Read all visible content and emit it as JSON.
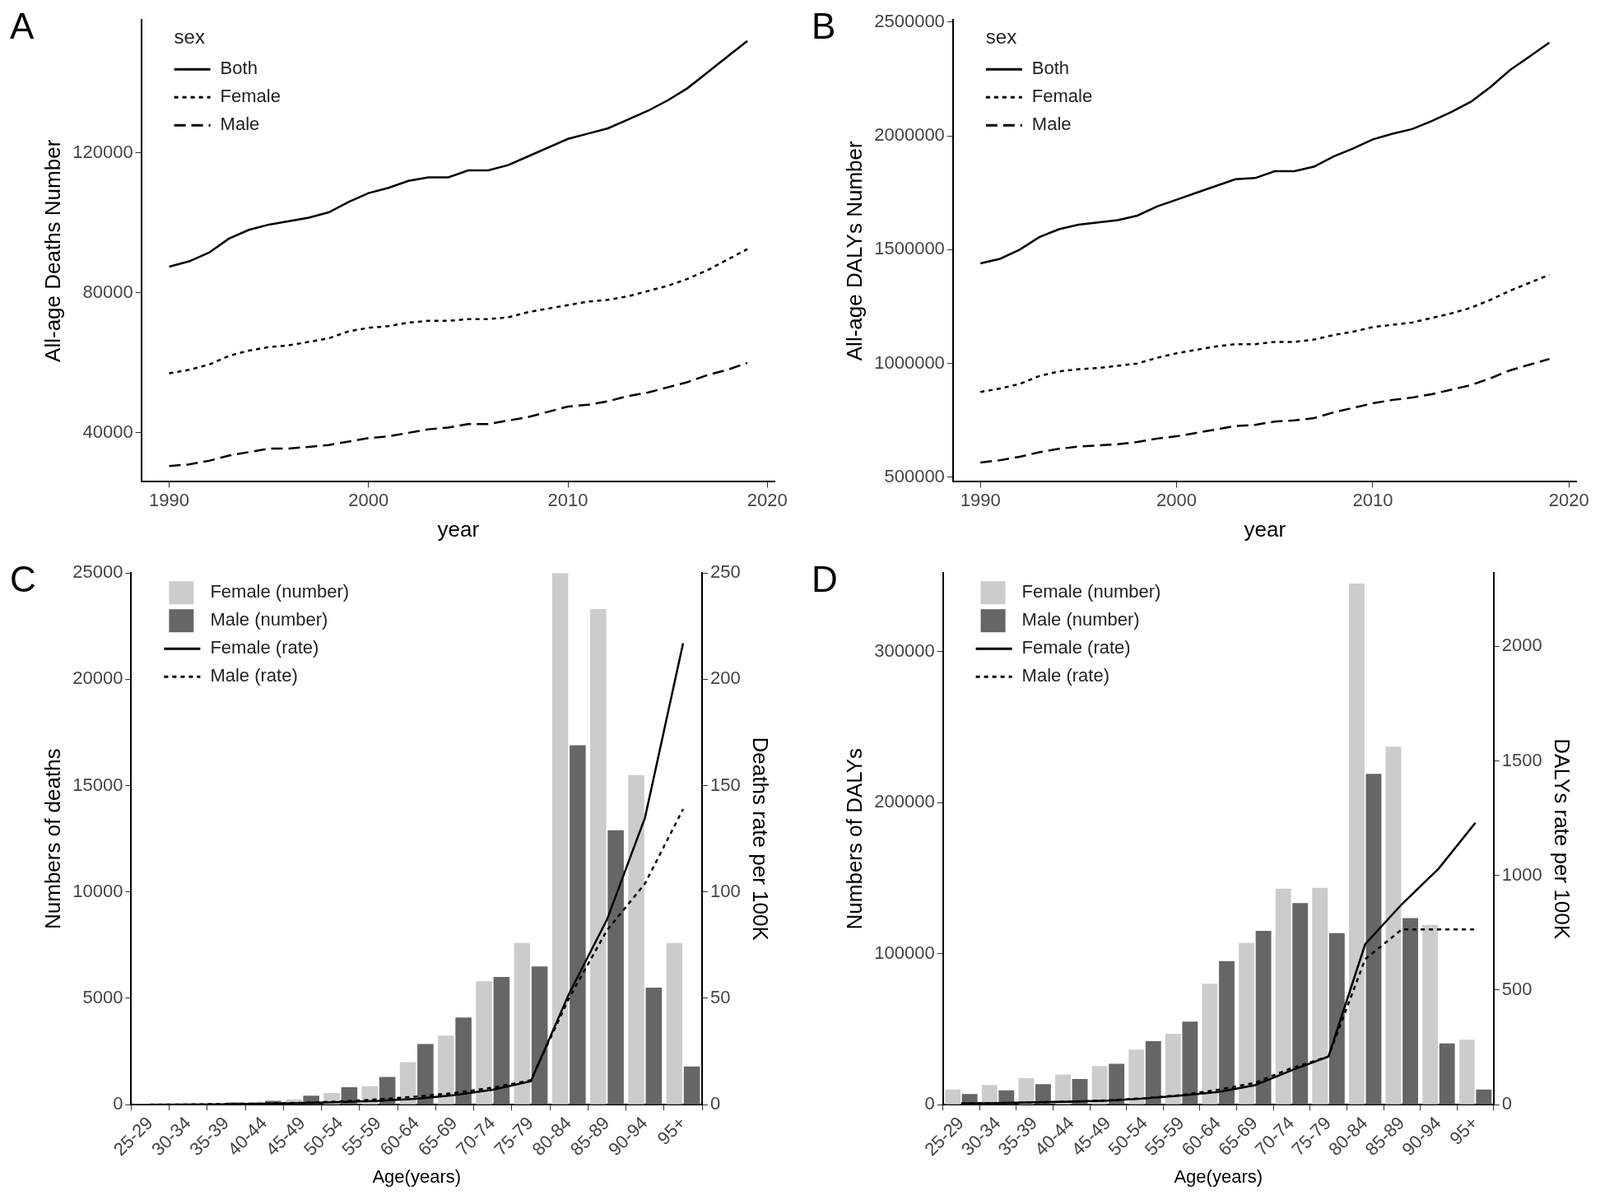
{
  "chart_data": [
    {
      "type": "line",
      "panel_label": "A",
      "x_label": "year",
      "y_label": "All-age Deaths Number",
      "legend": "top-left",
      "legend_title": "sex",
      "grid": false,
      "x": [
        1990,
        1991,
        1992,
        1993,
        1994,
        1995,
        1996,
        1997,
        1998,
        1999,
        2000,
        2001,
        2002,
        2003,
        2004,
        2005,
        2006,
        2007,
        2008,
        2009,
        2010,
        2011,
        2012,
        2013,
        2014,
        2015,
        2016,
        2017,
        2018,
        2019
      ],
      "xlim": [
        1988.6,
        2020.4
      ],
      "xticks": [
        1990,
        2000,
        2010,
        2020
      ],
      "ylim": [
        26000,
        158000
      ],
      "yticks": [
        40000,
        80000,
        120000
      ],
      "series": [
        {
          "name": "Both",
          "color": "#000000",
          "line_style": "solid",
          "values": [
            87500,
            89000,
            91500,
            95500,
            98000,
            99500,
            100500,
            101500,
            103000,
            106000,
            108500,
            110000,
            112000,
            113000,
            113000,
            115000,
            115000,
            116500,
            119000,
            121500,
            124000,
            125500,
            127000,
            129500,
            132000,
            135000,
            138500,
            143000,
            147500,
            152000
          ]
        },
        {
          "name": "Female",
          "color": "#000000",
          "line_style": "dotted",
          "values": [
            57000,
            58000,
            59500,
            62000,
            63500,
            64500,
            65000,
            66000,
            67000,
            69000,
            70000,
            70500,
            71500,
            72000,
            72000,
            72500,
            72500,
            73000,
            74500,
            75500,
            76500,
            77500,
            78000,
            79000,
            80500,
            82000,
            84000,
            86500,
            89500,
            92500
          ]
        },
        {
          "name": "Male",
          "color": "#000000",
          "line_style": "dashed",
          "values": [
            30500,
            31000,
            32000,
            33500,
            34500,
            35500,
            35500,
            36000,
            36500,
            37500,
            38500,
            39000,
            40000,
            41000,
            41500,
            42500,
            42500,
            43500,
            44500,
            46000,
            47500,
            48000,
            49000,
            50500,
            51500,
            53000,
            54500,
            56500,
            58000,
            60000
          ]
        }
      ]
    },
    {
      "type": "line",
      "panel_label": "B",
      "x_label": "year",
      "y_label": "All-age DALYs Number",
      "legend": "top-left",
      "legend_title": "sex",
      "grid": false,
      "x": [
        1990,
        1991,
        1992,
        1993,
        1994,
        1995,
        1996,
        1997,
        1998,
        1999,
        2000,
        2001,
        2002,
        2003,
        2004,
        2005,
        2006,
        2007,
        2008,
        2009,
        2010,
        2011,
        2012,
        2013,
        2014,
        2015,
        2016,
        2017,
        2018,
        2019
      ],
      "xlim": [
        1988.6,
        2020.4
      ],
      "xticks": [
        1990,
        2000,
        2010,
        2020
      ],
      "ylim": [
        480000,
        2510000
      ],
      "yticks": [
        500000,
        1000000,
        1500000,
        2000000,
        2500000
      ],
      "series": [
        {
          "name": "Both",
          "color": "#000000",
          "line_style": "solid",
          "values": [
            1440000,
            1460000,
            1500000,
            1555000,
            1590000,
            1610000,
            1620000,
            1630000,
            1650000,
            1690000,
            1720000,
            1750000,
            1780000,
            1810000,
            1815000,
            1845000,
            1845000,
            1865000,
            1910000,
            1945000,
            1985000,
            2010000,
            2030000,
            2065000,
            2105000,
            2150000,
            2215000,
            2290000,
            2350000,
            2410000
          ]
        },
        {
          "name": "Female",
          "color": "#000000",
          "line_style": "dotted",
          "values": [
            875000,
            890000,
            910000,
            945000,
            965000,
            975000,
            980000,
            990000,
            1000000,
            1025000,
            1045000,
            1060000,
            1075000,
            1085000,
            1085000,
            1095000,
            1095000,
            1105000,
            1125000,
            1140000,
            1160000,
            1170000,
            1180000,
            1200000,
            1220000,
            1245000,
            1280000,
            1320000,
            1355000,
            1390000
          ]
        },
        {
          "name": "Male",
          "color": "#000000",
          "line_style": "dashed",
          "values": [
            565000,
            575000,
            590000,
            610000,
            625000,
            635000,
            640000,
            645000,
            655000,
            670000,
            680000,
            695000,
            710000,
            725000,
            730000,
            745000,
            750000,
            760000,
            785000,
            805000,
            825000,
            840000,
            850000,
            865000,
            885000,
            905000,
            935000,
            970000,
            995000,
            1020000
          ]
        }
      ]
    },
    {
      "type": "bar",
      "panel_label": "C",
      "x_label": "Age(years)",
      "y_label": "Numbers of deaths",
      "y2_label": "Deaths rate per 100K",
      "legend": "top-left",
      "grid": false,
      "categories": [
        "25-29",
        "30-34",
        "35-39",
        "40-44",
        "45-49",
        "50-54",
        "55-59",
        "60-64",
        "65-69",
        "70-74",
        "75-79",
        "80-84",
        "85-89",
        "90-94",
        "95+"
      ],
      "ylim": [
        0,
        25000
      ],
      "yticks": [
        0,
        5000,
        10000,
        15000,
        20000,
        25000
      ],
      "y2lim": [
        0,
        250
      ],
      "y2ticks": [
        0,
        50,
        100,
        150,
        200,
        250
      ],
      "series": [
        {
          "name": "Female (number)",
          "type": "bar",
          "color": "#cccccc",
          "values": [
            10,
            20,
            60,
            130,
            250,
            550,
            870,
            2000,
            3250,
            5800,
            7600,
            25000,
            23300,
            15500,
            7600
          ]
        },
        {
          "name": "Male (number)",
          "type": "bar",
          "color": "#666666",
          "values": [
            10,
            30,
            100,
            180,
            420,
            820,
            1300,
            2850,
            4100,
            6000,
            6500,
            16900,
            12900,
            5500,
            1800
          ]
        },
        {
          "name": "Female (rate)",
          "type": "line",
          "axis": "y2",
          "color": "#000000",
          "line_style": "solid",
          "values": [
            0,
            0.1,
            0.2,
            0.4,
            0.7,
            1.2,
            1.8,
            2.8,
            4.5,
            7,
            11,
            52,
            87,
            135,
            217
          ]
        },
        {
          "name": "Male (rate)",
          "type": "line",
          "axis": "y2",
          "color": "#000000",
          "line_style": "dotted",
          "values": [
            0.1,
            0.1,
            0.3,
            0.5,
            0.9,
            1.5,
            2.5,
            3.8,
            5.5,
            8,
            11.5,
            50,
            82,
            104,
            139
          ]
        }
      ]
    },
    {
      "type": "bar",
      "panel_label": "D",
      "x_label": "Age(years)",
      "y_label": "Numbers of DALYs",
      "y2_label": "DALYs rate per 100K",
      "legend": "top-left",
      "grid": false,
      "categories": [
        "25-29",
        "30-34",
        "35-39",
        "40-44",
        "45-49",
        "50-54",
        "55-59",
        "60-64",
        "65-69",
        "70-74",
        "75-79",
        "80-84",
        "85-89",
        "90-94",
        "95+"
      ],
      "ylim": [
        0,
        352000
      ],
      "yticks": [
        0,
        100000,
        200000,
        300000
      ],
      "y2lim": [
        0,
        2320
      ],
      "y2ticks": [
        0,
        500,
        1000,
        1500,
        2000
      ],
      "series": [
        {
          "name": "Female (number)",
          "type": "bar",
          "color": "#cccccc",
          "values": [
            10000,
            13000,
            17500,
            20000,
            25500,
            36500,
            47000,
            80000,
            107000,
            143000,
            143500,
            345000,
            237000,
            119000,
            43000
          ]
        },
        {
          "name": "Male (number)",
          "type": "bar",
          "color": "#666666",
          "values": [
            7000,
            9500,
            13500,
            17000,
            27000,
            42000,
            55000,
            95000,
            115000,
            133500,
            113500,
            219000,
            123500,
            40500,
            10000
          ]
        },
        {
          "name": "Female (rate)",
          "type": "line",
          "axis": "y2",
          "color": "#000000",
          "line_style": "solid",
          "values": [
            5,
            7,
            10,
            13,
            18,
            27,
            40,
            55,
            85,
            150,
            210,
            700,
            875,
            1030,
            1230
          ]
        },
        {
          "name": "Male (rate)",
          "type": "line",
          "axis": "y2",
          "color": "#000000",
          "line_style": "dotted",
          "values": [
            5,
            7,
            10,
            13,
            19,
            28,
            42,
            65,
            95,
            160,
            210,
            635,
            765,
            765,
            765
          ]
        }
      ]
    }
  ]
}
